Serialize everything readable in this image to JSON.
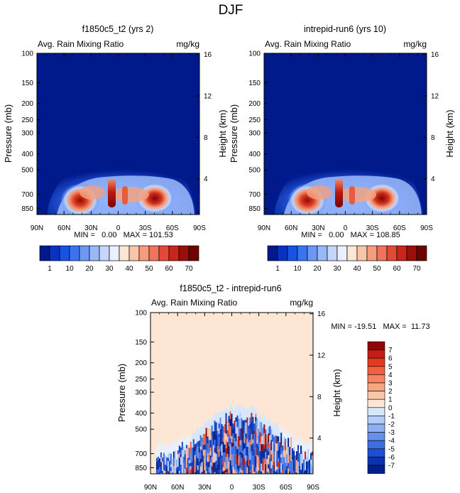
{
  "page_title": "DJF",
  "chart_data": [
    {
      "type": "heatmap",
      "title": "f1850c5_t2 (yrs 2)",
      "subtitle_left": "Avg. Rain Mixing Ratio",
      "subtitle_right": "mg/kg",
      "ylabel": "Pressure (mb)",
      "ylabel_right": "Height (km)",
      "x_ticks": [
        "90N",
        "60N",
        "30N",
        "0",
        "30S",
        "60S",
        "90S"
      ],
      "x_range": [
        90,
        -90
      ],
      "y_ticks": [
        "100",
        "150",
        "200",
        "250",
        "300",
        "400",
        "500",
        "700",
        "850"
      ],
      "y_tick_values": [
        100,
        150,
        200,
        250,
        300,
        400,
        500,
        700,
        850
      ],
      "y_range": [
        100,
        925
      ],
      "height_ticks": [
        "16",
        "12",
        "8",
        "4"
      ],
      "min_max": "MIN =   0.00   MAX = 101.53",
      "min": 0.0,
      "max": 101.53
    },
    {
      "type": "heatmap",
      "title": "intrepid-run6 (yrs 10)",
      "subtitle_left": "Avg. Rain Mixing Ratio",
      "subtitle_right": "mg/kg",
      "ylabel": "Pressure (mb)",
      "ylabel_right": "Height (km)",
      "x_ticks": [
        "90N",
        "60N",
        "30N",
        "0",
        "30S",
        "60S",
        "90S"
      ],
      "x_range": [
        90,
        -90
      ],
      "y_ticks": [
        "100",
        "150",
        "200",
        "250",
        "300",
        "400",
        "500",
        "700",
        "850"
      ],
      "y_tick_values": [
        100,
        150,
        200,
        250,
        300,
        400,
        500,
        700,
        850
      ],
      "y_range": [
        100,
        925
      ],
      "height_ticks": [
        "16",
        "12",
        "8",
        "4"
      ],
      "min_max": "MIN =   0.00   MAX = 108.85",
      "min": 0.0,
      "max": 108.85
    },
    {
      "type": "heatmap",
      "title": "f1850c5_t2 - intrepid-run6",
      "subtitle_left": "Avg. Rain Mixing Ratio",
      "subtitle_right": "mg/kg",
      "ylabel": "Pressure (mb)",
      "ylabel_right": "Height (km)",
      "x_ticks": [
        "90N",
        "60N",
        "30N",
        "0",
        "30S",
        "60S",
        "90S"
      ],
      "x_range": [
        90,
        -90
      ],
      "y_ticks": [
        "100",
        "150",
        "200",
        "250",
        "300",
        "400",
        "500",
        "700",
        "850"
      ],
      "y_tick_values": [
        100,
        150,
        200,
        250,
        300,
        400,
        500,
        700,
        850
      ],
      "y_range": [
        100,
        925
      ],
      "height_ticks": [
        "16",
        "12",
        "8",
        "4"
      ],
      "min_max": "MIN = -19.51   MAX =  11.73",
      "min": -19.51,
      "max": 11.73
    }
  ],
  "colorbar_top": {
    "labels": [
      "1",
      "10",
      "20",
      "30",
      "40",
      "50",
      "60",
      "70"
    ],
    "colors": [
      "#001a8c",
      "#0533c2",
      "#1652e6",
      "#3a73f2",
      "#6b97f7",
      "#99b8fa",
      "#c4d6fc",
      "#eaf0fe",
      "#fde6d6",
      "#f9c4a8",
      "#f59c7d",
      "#f0735a",
      "#e24a36",
      "#c9261b",
      "#9c0e0a",
      "#6e0303"
    ]
  },
  "colorbar_diff": {
    "labels": [
      "7",
      "6",
      "5",
      "4",
      "3",
      "2",
      "1",
      "0",
      "-1",
      "-2",
      "-3",
      "-4",
      "-5",
      "-6",
      "-7"
    ],
    "colors": [
      "#8e0707",
      "#c51d14",
      "#e53a22",
      "#f2603f",
      "#f5845f",
      "#f7a682",
      "#f9c6a9",
      "#fde6d3",
      "#d6e6fb",
      "#b3cdf8",
      "#8cb0f3",
      "#6690ec",
      "#3f6ee2",
      "#1d4fd2",
      "#0a33ad",
      "#02208a"
    ]
  }
}
